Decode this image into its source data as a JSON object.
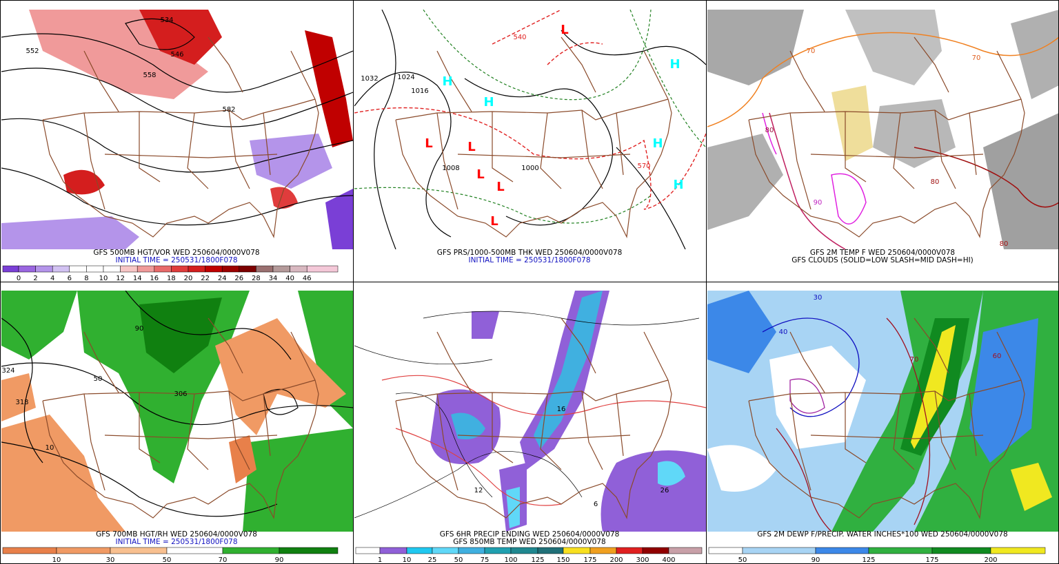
{
  "panels": [
    {
      "title": "GFS 500MB HGT/VOR WED 250604/0000V078",
      "subtitle": "INITIAL TIME = 250531/1800F078",
      "subtitle_color": "#1010c0",
      "colorbar": {
        "labels": [
          0,
          2,
          4,
          6,
          8,
          10,
          12,
          14,
          16,
          18,
          20,
          22,
          24,
          26,
          28,
          34,
          40,
          46
        ],
        "colors": [
          "#7a3fd6",
          "#9a66e0",
          "#b494ea",
          "#d2c2f2",
          "#ffffff",
          "#ffffff",
          "#ffffff",
          "#f7c6c6",
          "#f09a9a",
          "#e86a6a",
          "#e03c3c",
          "#d41e1e",
          "#c00000",
          "#9c0000",
          "#7c0000",
          "#9a7070",
          "#b49a9a",
          "#d8b8c0",
          "#f4c8d8"
        ]
      },
      "map_labels": [
        "552",
        "558",
        "534",
        "546",
        "582"
      ]
    },
    {
      "title": "GFS PRS/1000-500MB THK WED 250604/0000V078",
      "subtitle": "INITIAL TIME = 250531/1800F078",
      "subtitle_color": "#1010c0",
      "map_labels": [
        "1032",
        "1024",
        "1016",
        "1008",
        "1000",
        "540",
        "570",
        "H",
        "H",
        "H",
        "H",
        "H",
        "L",
        "L",
        "L",
        "L",
        "L",
        "L"
      ]
    },
    {
      "title": "GFS 2M TEMP F WED 250604/0000V078",
      "subtitle": "GFS CLOUDS (SOLID=LOW SLASH=MID DASH=HI)",
      "subtitle_color": "#000000",
      "map_labels": [
        "70",
        "80",
        "90",
        "80",
        "70",
        "80"
      ]
    },
    {
      "title": "GFS 700MB HGT/RH WED 250604/0000V078",
      "subtitle": "INITIAL TIME = 250531/1800F078",
      "subtitle_color": "#1010c0",
      "colorbar": {
        "labels": [
          10,
          30,
          50,
          70,
          90
        ],
        "colors": [
          "#e8804a",
          "#f09a64",
          "#f8c090",
          "#ffffff",
          "#30b030",
          "#108010"
        ]
      },
      "map_labels": [
        "324",
        "318",
        "50",
        "90",
        "306",
        "10"
      ]
    },
    {
      "title": "GFS 6HR PRECIP ENDING WED 250604/0000V078",
      "subtitle": "GFS 850MB TEMP WED 250604/0000V078",
      "subtitle_color": "#000000",
      "colorbar": {
        "labels": [
          1,
          10,
          25,
          50,
          75,
          100,
          125,
          150,
          175,
          200,
          300,
          400
        ],
        "colors": [
          "#ffffff",
          "#9060d8",
          "#20c8f0",
          "#60d8f8",
          "#40b0e0",
          "#20a0b0",
          "#208890",
          "#207078",
          "#f8e020",
          "#f0a020",
          "#e02020",
          "#900000",
          "#c8a0a8"
        ]
      },
      "map_labels": [
        "16",
        "6",
        "12",
        "26"
      ]
    },
    {
      "title": "GFS 2M DEWP F/PRECIP. WATER INCHES*100 WED 250604/0000V078",
      "subtitle_color": "#000000",
      "colorbar": {
        "labels": [
          50,
          90,
          125,
          175,
          200
        ],
        "colors": [
          "#ffffff",
          "#a8d4f4",
          "#3c88e8",
          "#30b040",
          "#108a20",
          "#f0e820"
        ]
      },
      "map_labels": [
        "30",
        "40",
        "60",
        "70"
      ]
    }
  ]
}
